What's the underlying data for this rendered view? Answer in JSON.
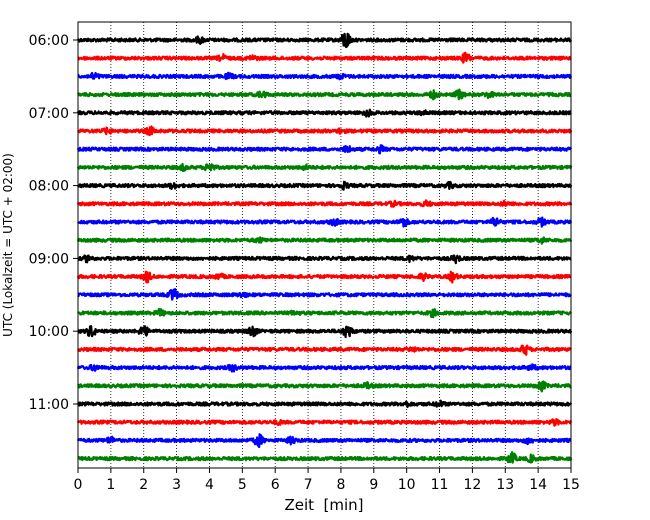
{
  "chart_data": {
    "type": "line",
    "subtype": "helicorder",
    "xlabel": "Zeit  [min]",
    "ylabel": "UTC (Lokalzeit = UTC + 02:00)",
    "xlim": [
      0,
      15
    ],
    "x_ticks": [
      0,
      1,
      2,
      3,
      4,
      5,
      6,
      7,
      8,
      9,
      10,
      11,
      12,
      13,
      14,
      15
    ],
    "y_ticks": [
      "06:00",
      "07:00",
      "08:00",
      "09:00",
      "10:00",
      "11:00"
    ],
    "row_interval_min": 15,
    "grid": "vertical dotted",
    "legend": "none",
    "colors": [
      "#000000",
      "#ff0000",
      "#0000ff",
      "#008000"
    ],
    "rows": [
      {
        "start": "06:00",
        "color": "#000000",
        "events": [
          {
            "t": 3.7,
            "amp": 0.5
          },
          {
            "t": 8.15,
            "amp": 1.6
          }
        ]
      },
      {
        "start": "06:15",
        "color": "#ff0000",
        "events": [
          {
            "t": 4.4,
            "amp": 0.5
          },
          {
            "t": 11.8,
            "amp": 0.8
          },
          {
            "t": 5.3,
            "amp": 0.35
          }
        ]
      },
      {
        "start": "06:30",
        "color": "#0000ff",
        "events": [
          {
            "t": 0.5,
            "amp": 0.5
          },
          {
            "t": 4.6,
            "amp": 0.4
          },
          {
            "t": 8.0,
            "amp": 0.3
          }
        ]
      },
      {
        "start": "06:45",
        "color": "#008000",
        "events": [
          {
            "t": 5.6,
            "amp": 0.5
          },
          {
            "t": 10.8,
            "amp": 0.6
          },
          {
            "t": 11.6,
            "amp": 0.7
          },
          {
            "t": 12.5,
            "amp": 0.45
          }
        ]
      },
      {
        "start": "07:00",
        "color": "#000000",
        "events": [
          {
            "t": 8.8,
            "amp": 0.5
          },
          {
            "t": 10.5,
            "amp": 0.3
          }
        ]
      },
      {
        "start": "07:15",
        "color": "#ff0000",
        "events": [
          {
            "t": 0.9,
            "amp": 0.4
          },
          {
            "t": 2.2,
            "amp": 0.6
          },
          {
            "t": 8.0,
            "amp": 0.3
          }
        ]
      },
      {
        "start": "07:30",
        "color": "#0000ff",
        "events": [
          {
            "t": 8.2,
            "amp": 0.5
          },
          {
            "t": 9.2,
            "amp": 0.5
          }
        ]
      },
      {
        "start": "07:45",
        "color": "#008000",
        "events": [
          {
            "t": 3.2,
            "amp": 0.4
          },
          {
            "t": 4.0,
            "amp": 0.8
          },
          {
            "t": 6.9,
            "amp": 0.3
          }
        ]
      },
      {
        "start": "08:00",
        "color": "#000000",
        "events": [
          {
            "t": 2.9,
            "amp": 0.4
          },
          {
            "t": 8.1,
            "amp": 0.5
          },
          {
            "t": 11.3,
            "amp": 0.4
          }
        ]
      },
      {
        "start": "08:15",
        "color": "#ff0000",
        "events": [
          {
            "t": 9.6,
            "amp": 0.3
          },
          {
            "t": 10.6,
            "amp": 0.4
          },
          {
            "t": 13.0,
            "amp": 0.3
          }
        ]
      },
      {
        "start": "08:30",
        "color": "#0000ff",
        "events": [
          {
            "t": 7.8,
            "amp": 0.5
          },
          {
            "t": 9.9,
            "amp": 0.7
          },
          {
            "t": 12.7,
            "amp": 0.7
          },
          {
            "t": 14.1,
            "amp": 0.6
          }
        ]
      },
      {
        "start": "08:45",
        "color": "#008000",
        "events": [
          {
            "t": 5.5,
            "amp": 0.3
          },
          {
            "t": 14.1,
            "amp": 0.4
          }
        ]
      },
      {
        "start": "09:00",
        "color": "#000000",
        "events": [
          {
            "t": 0.3,
            "amp": 0.5
          },
          {
            "t": 10.1,
            "amp": 0.4
          },
          {
            "t": 11.5,
            "amp": 0.6
          }
        ]
      },
      {
        "start": "09:15",
        "color": "#ff0000",
        "events": [
          {
            "t": 2.1,
            "amp": 0.8
          },
          {
            "t": 4.3,
            "amp": 0.4
          },
          {
            "t": 10.5,
            "amp": 0.5
          },
          {
            "t": 11.4,
            "amp": 0.8
          }
        ]
      },
      {
        "start": "09:30",
        "color": "#0000ff",
        "events": [
          {
            "t": 2.9,
            "amp": 1.0
          },
          {
            "t": 5.0,
            "amp": 0.3
          }
        ]
      },
      {
        "start": "09:45",
        "color": "#008000",
        "events": [
          {
            "t": 2.5,
            "amp": 0.5
          },
          {
            "t": 6.6,
            "amp": 0.3
          },
          {
            "t": 10.8,
            "amp": 0.5
          }
        ]
      },
      {
        "start": "10:00",
        "color": "#000000",
        "events": [
          {
            "t": 0.4,
            "amp": 0.9
          },
          {
            "t": 2.0,
            "amp": 0.9
          },
          {
            "t": 5.3,
            "amp": 0.9
          },
          {
            "t": 8.2,
            "amp": 1.1
          }
        ]
      },
      {
        "start": "10:15",
        "color": "#ff0000",
        "events": [
          {
            "t": 13.6,
            "amp": 0.8
          },
          {
            "t": 10.2,
            "amp": 0.3
          }
        ]
      },
      {
        "start": "10:30",
        "color": "#0000ff",
        "events": [
          {
            "t": 0.5,
            "amp": 0.4
          },
          {
            "t": 4.7,
            "amp": 0.5
          },
          {
            "t": 13.8,
            "amp": 0.4
          }
        ]
      },
      {
        "start": "10:45",
        "color": "#008000",
        "events": [
          {
            "t": 8.8,
            "amp": 0.4
          },
          {
            "t": 14.1,
            "amp": 0.8
          }
        ]
      },
      {
        "start": "11:00",
        "color": "#000000",
        "events": [
          {
            "t": 10.0,
            "amp": 0.3
          },
          {
            "t": 11.0,
            "amp": 0.4
          }
        ]
      },
      {
        "start": "11:15",
        "color": "#ff0000",
        "events": [
          {
            "t": 14.5,
            "amp": 0.4
          },
          {
            "t": 6.1,
            "amp": 0.25
          }
        ]
      },
      {
        "start": "11:30",
        "color": "#0000ff",
        "events": [
          {
            "t": 1.0,
            "amp": 0.5
          },
          {
            "t": 5.5,
            "amp": 1.0
          },
          {
            "t": 6.5,
            "amp": 0.5
          },
          {
            "t": 13.7,
            "amp": 0.5
          }
        ]
      },
      {
        "start": "11:45",
        "color": "#008000",
        "events": [
          {
            "t": 13.2,
            "amp": 0.9
          },
          {
            "t": 13.8,
            "amp": 0.5
          }
        ]
      }
    ]
  }
}
